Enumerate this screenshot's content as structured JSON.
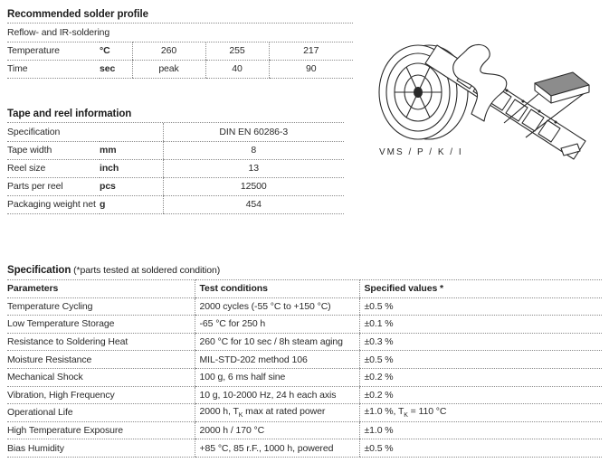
{
  "colors": {
    "text": "#222222",
    "dotted_line": "#8a8a8a",
    "chip_fill": "#8c8c8c"
  },
  "solder_profile": {
    "title": "Recommended solder profile",
    "subtitle": "Reflow- and IR-soldering",
    "rows": [
      {
        "label": "Temperature",
        "unit": "°C",
        "values": [
          "260",
          "255",
          "217"
        ]
      },
      {
        "label": "Time",
        "unit": "sec",
        "values": [
          "peak",
          "40",
          "90"
        ]
      }
    ]
  },
  "tape_reel": {
    "title": "Tape and reel information",
    "rows": [
      {
        "label": "Specification",
        "unit": "",
        "value": "DIN EN 60286-3"
      },
      {
        "label": "Tape width",
        "unit": "mm",
        "value": "8"
      },
      {
        "label": "Reel size",
        "unit": "inch",
        "value": "13"
      },
      {
        "label": "Parts per reel",
        "unit": "pcs",
        "value": "12500"
      },
      {
        "label": "Packaging weight net",
        "unit": "g",
        "value": "454"
      }
    ],
    "illustration_caption": "VMS / P / K / I"
  },
  "specification": {
    "title": "Specification",
    "title_note": " (*parts tested at soldered condition)",
    "headers": [
      "Parameters",
      "Test conditions",
      "Specified values *"
    ],
    "rows": [
      [
        "Temperature Cycling",
        "2000 cycles (-55 °C to +150 °C)",
        "±0.5 %"
      ],
      [
        "Low Temperature Storage",
        "-65 °C for 250 h",
        "±0.1 %"
      ],
      [
        "Resistance to Soldering Heat",
        "260 °C for 10 sec / 8h steam aging",
        "±0.3 %"
      ],
      [
        "Moisture Resistance",
        "MIL-STD-202 method 106",
        "±0.5 %"
      ],
      [
        "Mechanical Shock",
        "100 g, 6 ms half sine",
        "±0.2 %"
      ],
      [
        "Vibration, High Frequency",
        "10 g, 10-2000 Hz, 24 h each axis",
        "±0.2 %"
      ],
      [
        "Operational Life",
        "2000 h, T[sub]K[/sub] max at rated power",
        "±1.0 %, T[sub]K[/sub] = 110 °C"
      ],
      [
        "High Temperature Exposure",
        "2000 h / 170 °C",
        "±1.0 %"
      ],
      [
        "Bias Humidity",
        "+85 °C, 85 r.F., 1000 h, powered",
        "±0.5 %"
      ]
    ]
  }
}
